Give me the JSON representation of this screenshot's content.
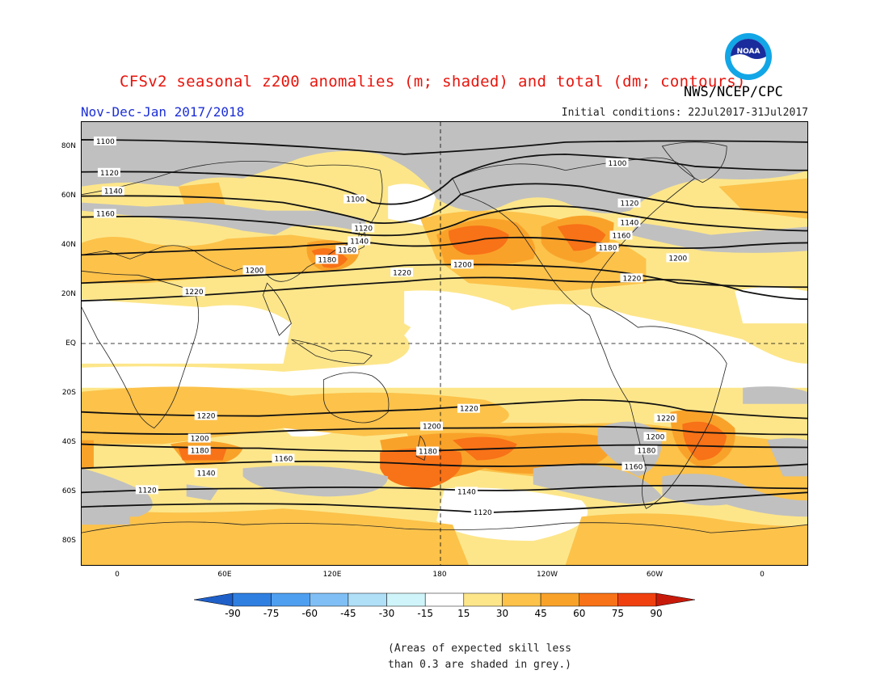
{
  "header": {
    "title": "CFSv2 seasonal z200 anomalies (m; shaded) and total (dm; contours)",
    "agency": "NWS/NCEP/CPC",
    "period": "Nov-Dec-Jan 2017/2018",
    "initial_conditions": "Initial conditions: 22Jul2017-31Jul2017",
    "logo_text": "NOAA"
  },
  "axes": {
    "lat_labels": [
      "80N",
      "60N",
      "40N",
      "20N",
      "EQ",
      "20S",
      "40S",
      "60S",
      "80S"
    ],
    "lon_labels": [
      "0",
      "60E",
      "120E",
      "180",
      "120W",
      "60W",
      "0"
    ]
  },
  "colorbar": {
    "ticks": [
      "-90",
      "-75",
      "-60",
      "-45",
      "-30",
      "-15",
      "15",
      "30",
      "45",
      "60",
      "75",
      "90"
    ],
    "colors": [
      "#1f5fc8",
      "#2f7fe0",
      "#4f9ff0",
      "#80bff5",
      "#b0dff8",
      "#cff5fa",
      "#ffffff",
      "#fde68a",
      "#fcc24a",
      "#f9a22a",
      "#f87217",
      "#f04010",
      "#c81a0a"
    ]
  },
  "note": {
    "line1": "(Areas of expected skill less",
    "line2": "than 0.3 are shaded in grey.)"
  },
  "contour_labels": {
    "c1100": "1100",
    "c1120": "1120",
    "c1140": "1140",
    "c1160": "1160",
    "c1180": "1180",
    "c1200": "1200",
    "c1220": "1220"
  },
  "colors": {
    "grey_mask": "#c0c0c0",
    "anom_15_30": "#fde68a",
    "anom_30_45": "#fcc24a",
    "anom_45_60": "#f9a22a",
    "anom_60_75": "#f87217",
    "title_red": "#e8140c",
    "period_blue": "#1c2fd6"
  }
}
